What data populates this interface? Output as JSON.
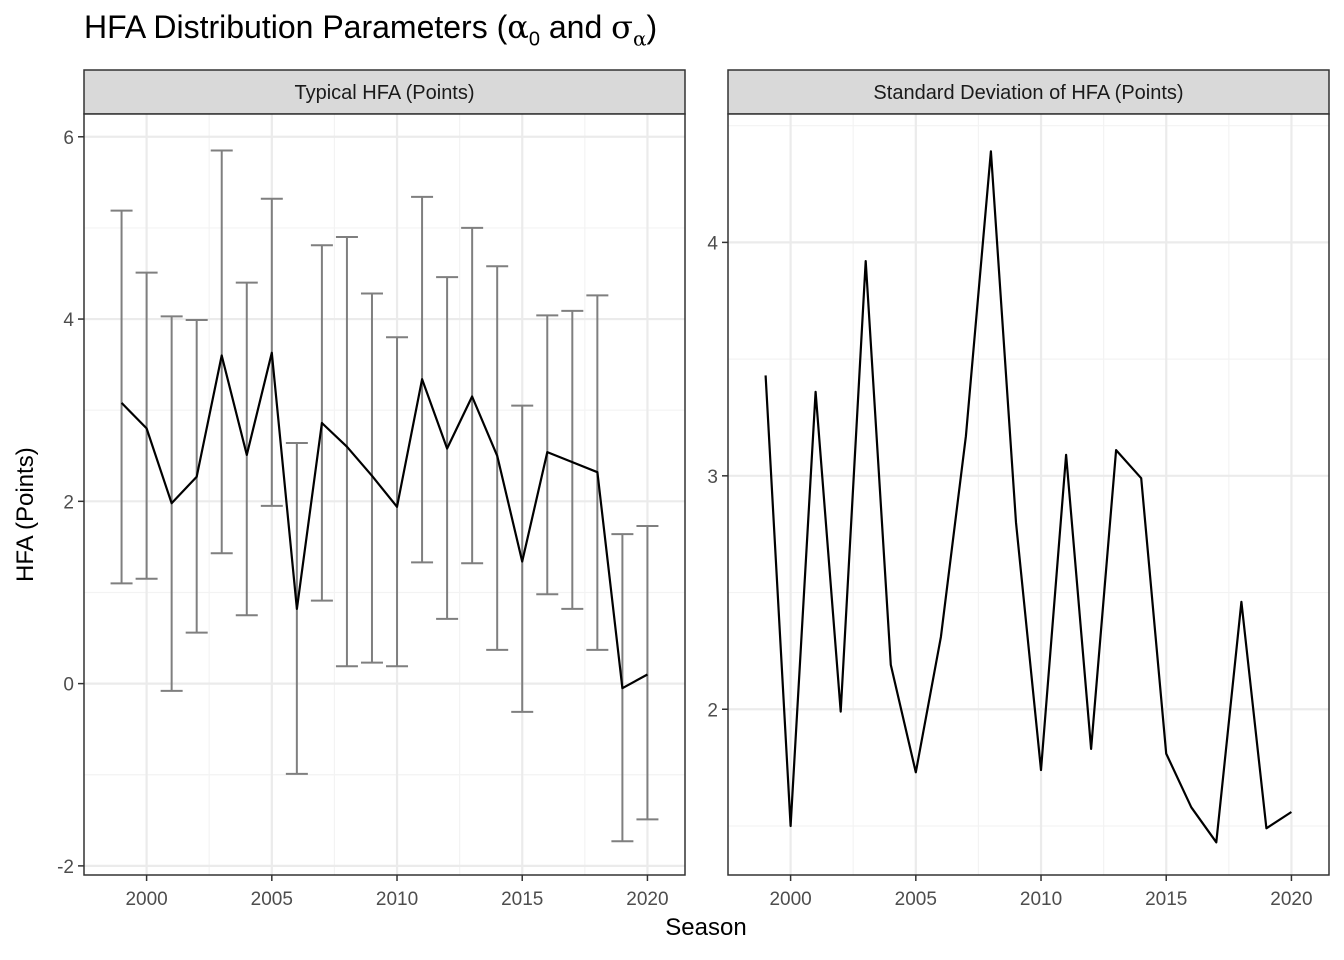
{
  "title_main": "HFA Distribution Parameters (",
  "title_alpha": "α",
  "title_sub0": "0",
  "title_and": " and ",
  "title_sigma": "σ",
  "title_subalpha": "α",
  "title_close": ")",
  "ylabel": "HFA (Points)",
  "xlabel": "Season",
  "colors": {
    "panel_border": "#333333",
    "strip_fill": "#d9d9d9",
    "grid_major": "#ebebeb",
    "grid_minor": "#f3f3f3",
    "line": "#000000",
    "errorbar": "#7f7f7f",
    "tick_text": "#4d4d4d"
  },
  "chart_data": [
    {
      "type": "line",
      "facet_label": "Typical HFA (Points)",
      "x": [
        1999,
        2000,
        2001,
        2002,
        2003,
        2004,
        2005,
        2006,
        2007,
        2008,
        2009,
        2010,
        2011,
        2012,
        2013,
        2014,
        2015,
        2016,
        2017,
        2018,
        2019,
        2020
      ],
      "values": [
        3.08,
        2.8,
        1.98,
        2.27,
        3.6,
        2.51,
        3.63,
        0.82,
        2.86,
        2.6,
        2.28,
        1.94,
        3.34,
        2.58,
        3.15,
        2.5,
        1.34,
        2.54,
        2.43,
        2.32,
        -0.05,
        0.1
      ],
      "lower": [
        1.1,
        1.15,
        -0.08,
        0.56,
        1.43,
        0.75,
        1.95,
        -0.99,
        0.91,
        0.19,
        0.23,
        0.19,
        1.33,
        0.71,
        1.32,
        0.37,
        -0.31,
        0.98,
        0.82,
        0.37,
        -1.73,
        -1.49
      ],
      "upper": [
        5.19,
        4.51,
        4.03,
        3.99,
        5.85,
        4.4,
        5.32,
        2.64,
        4.81,
        4.9,
        4.28,
        3.8,
        5.34,
        4.46,
        5.0,
        4.58,
        3.05,
        4.04,
        4.09,
        4.26,
        1.64,
        1.73
      ],
      "xlim": [
        1997.5,
        2021.5
      ],
      "ylim": [
        -2.1,
        6.25
      ],
      "x_ticks": [
        2000,
        2005,
        2010,
        2015,
        2020
      ],
      "y_ticks": [
        -2,
        0,
        2,
        4,
        6
      ],
      "y_tick_labels": [
        "-2",
        "0",
        "2",
        "4",
        "6"
      ],
      "x_tick_labels": [
        "2000",
        "2005",
        "2010",
        "2015",
        "2020"
      ],
      "grid": true
    },
    {
      "type": "line",
      "facet_label": "Standard Deviation of HFA (Points)",
      "x": [
        1999,
        2000,
        2001,
        2002,
        2003,
        2004,
        2005,
        2006,
        2007,
        2008,
        2009,
        2010,
        2011,
        2012,
        2013,
        2014,
        2015,
        2016,
        2017,
        2018,
        2019,
        2020
      ],
      "values": [
        3.43,
        1.5,
        3.36,
        1.99,
        3.92,
        2.19,
        1.73,
        2.31,
        3.17,
        4.39,
        2.8,
        1.74,
        3.09,
        1.83,
        3.11,
        2.99,
        1.81,
        1.58,
        1.43,
        2.46,
        1.49,
        1.56
      ],
      "xlim": [
        1997.5,
        2021.5
      ],
      "ylim": [
        1.29,
        4.55
      ],
      "x_ticks": [
        2000,
        2005,
        2010,
        2015,
        2020
      ],
      "y_ticks": [
        2,
        3,
        4
      ],
      "y_tick_labels": [
        "2",
        "3",
        "4"
      ],
      "x_tick_labels": [
        "2000",
        "2005",
        "2010",
        "2015",
        "2020"
      ],
      "grid": true
    }
  ]
}
